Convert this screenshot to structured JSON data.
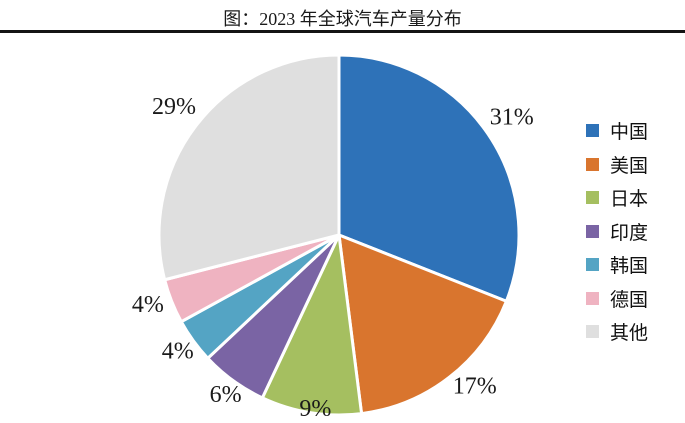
{
  "header": {
    "title": "图：2023 年全球汽车产量分布"
  },
  "chart_data": {
    "type": "pie",
    "title": "图：2023 年全球汽车产量分布",
    "unit": "percent",
    "start_angle_deg": 0,
    "direction": "clockwise",
    "legend_position": "right",
    "label_color": "#1a1a1a",
    "slice_border_color": "#ffffff",
    "slices": [
      {
        "label": "中国",
        "value": 31,
        "display": "31%",
        "color": "#2E72B8"
      },
      {
        "label": "美国",
        "value": 17,
        "display": "17%",
        "color": "#D9752E"
      },
      {
        "label": "日本",
        "value": 9,
        "display": "9%",
        "color": "#A5BF60"
      },
      {
        "label": "印度",
        "value": 6,
        "display": "6%",
        "color": "#7A64A4"
      },
      {
        "label": "韩国",
        "value": 4,
        "display": "4%",
        "color": "#54A4C4"
      },
      {
        "label": "德国",
        "value": 4,
        "display": "4%",
        "color": "#EFB3C1"
      },
      {
        "label": "其他",
        "value": 29,
        "display": "29%",
        "color": "#DFDFDF"
      }
    ]
  }
}
